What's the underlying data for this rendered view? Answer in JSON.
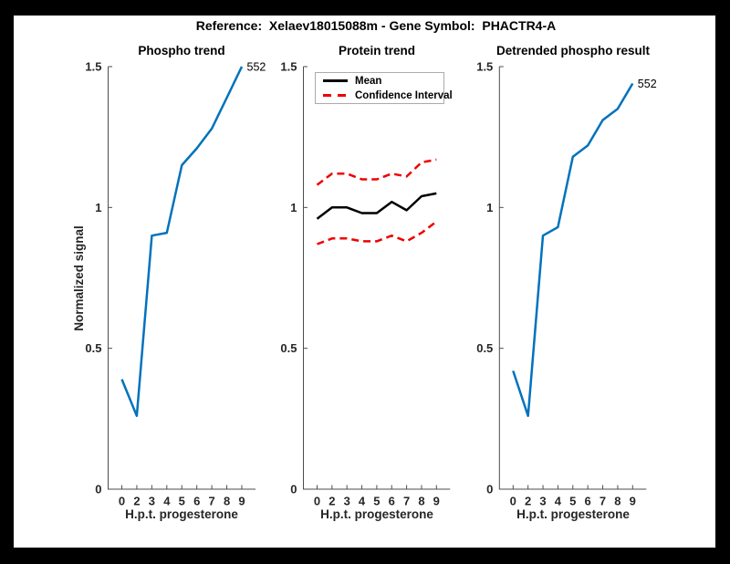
{
  "figure": {
    "title": "Reference:  Xelaev18015088m - Gene Symbol:  PHACTR4-A",
    "frame_color": "#000000",
    "background_color": "#ffffff",
    "accent_blue": "#0072BD",
    "accent_red": "#EE0000"
  },
  "chart_data": [
    {
      "type": "line",
      "title": "Phospho trend",
      "xlabel": "H.p.t. progesterone",
      "ylabel": "Normalized signal",
      "x_ticklabels": [
        "0",
        "2",
        "3",
        "4",
        "5",
        "6",
        "7",
        "8",
        "9"
      ],
      "yticks": [
        0,
        0.5,
        1,
        1.5
      ],
      "ytick_labels": [
        "0",
        "0.5",
        "1",
        "1.5"
      ],
      "ylim": [
        0,
        1.5
      ],
      "grid": false,
      "end_label": "552",
      "series": [
        {
          "name": "phospho-trend",
          "label": "552",
          "color": "#0072BD",
          "style": "solid",
          "values": [
            0.39,
            0.26,
            0.9,
            0.91,
            1.15,
            1.21,
            1.28,
            1.39,
            1.5
          ]
        }
      ]
    },
    {
      "type": "line",
      "title": "Protein trend",
      "xlabel": "H.p.t. progesterone",
      "ylabel": "",
      "x_ticklabels": [
        "0",
        "2",
        "3",
        "4",
        "5",
        "6",
        "7",
        "8",
        "9"
      ],
      "yticks": [
        0,
        0.5,
        1,
        1.5
      ],
      "ytick_labels": [
        "0",
        "0.5",
        "1",
        "1.5"
      ],
      "ylim": [
        0,
        1.5
      ],
      "grid": false,
      "legend": {
        "position": "top-left",
        "entries": [
          "Mean",
          "Confidence Interval"
        ]
      },
      "series": [
        {
          "name": "mean",
          "label": "Mean",
          "color": "#000000",
          "style": "solid",
          "values": [
            0.96,
            1.0,
            1.0,
            0.98,
            0.98,
            1.02,
            0.99,
            1.04,
            1.05
          ]
        },
        {
          "name": "confidence-upper",
          "label": "Confidence Interval",
          "color": "#EE0000",
          "style": "dashed",
          "values": [
            1.08,
            1.12,
            1.12,
            1.1,
            1.1,
            1.12,
            1.11,
            1.16,
            1.17
          ]
        },
        {
          "name": "confidence-lower",
          "label": "Confidence Interval",
          "color": "#EE0000",
          "style": "dashed",
          "values": [
            0.87,
            0.89,
            0.89,
            0.88,
            0.88,
            0.9,
            0.88,
            0.91,
            0.95
          ]
        }
      ]
    },
    {
      "type": "line",
      "title": "Detrended phospho result",
      "xlabel": "H.p.t. progesterone",
      "ylabel": "",
      "x_ticklabels": [
        "0",
        "2",
        "3",
        "4",
        "5",
        "6",
        "7",
        "8",
        "9"
      ],
      "yticks": [
        0,
        0.5,
        1,
        1.5
      ],
      "ytick_labels": [
        "0",
        "0.5",
        "1",
        "1.5"
      ],
      "ylim": [
        0,
        1.5
      ],
      "grid": false,
      "end_label": "552",
      "series": [
        {
          "name": "detrended-phospho",
          "label": "552",
          "color": "#0072BD",
          "style": "solid",
          "values": [
            0.42,
            0.26,
            0.9,
            0.93,
            1.18,
            1.22,
            1.31,
            1.35,
            1.44
          ]
        }
      ]
    }
  ]
}
